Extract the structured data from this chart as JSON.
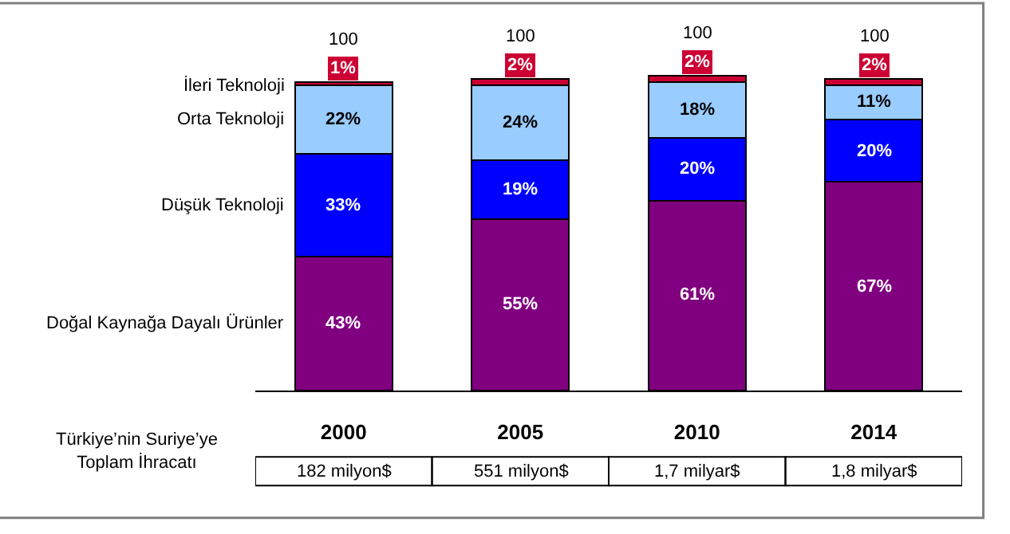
{
  "chart_data": {
    "type": "bar",
    "stacked": true,
    "legend": false,
    "categories": [
      "2000",
      "2005",
      "2010",
      "2014"
    ],
    "series": [
      {
        "name": "Doğal Kaynağa Dayalı Ürünler",
        "color": "#800080",
        "values": [
          43,
          55,
          61,
          67
        ],
        "value_labels": [
          "43%",
          "55%",
          "61%",
          "67%"
        ]
      },
      {
        "name": "Düşük Teknoloji",
        "color": "#0000ff",
        "values": [
          33,
          19,
          20,
          20
        ],
        "value_labels": [
          "33%",
          "19%",
          "20%",
          "20%"
        ]
      },
      {
        "name": "Orta Teknoloji",
        "color": "#99ccff",
        "values": [
          22,
          24,
          18,
          11
        ],
        "value_labels": [
          "22%",
          "24%",
          "18%",
          "11%"
        ]
      },
      {
        "name": "İleri Teknoloji",
        "color": "#cc0033",
        "values": [
          1,
          2,
          2,
          2
        ],
        "value_labels": [
          "1%",
          "2%",
          "2%",
          "2%"
        ]
      }
    ],
    "totals": [
      "100",
      "100",
      "100",
      "100"
    ],
    "annotations": [
      "Türkiye’nin Suriye’ye\nToplam İhracatı",
      "182 milyon$",
      "551 milyon$",
      "1,7 milyar$",
      "1,8 milyar$"
    ]
  }
}
